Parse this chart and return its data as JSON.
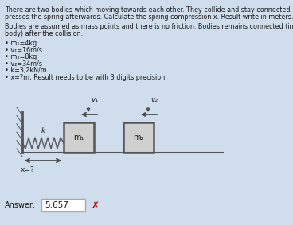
{
  "background_color": "#cfdded",
  "title_lines": [
    "There are two bodies which moving towards each other. They collide and stay connected. The",
    "presses the spring afterwards. Calculate the spring compression x. Result write in meters."
  ],
  "body_lines": [
    "Bodies are assumed as mass points and there is no friction. Bodies remains connected (into one",
    "body) after the collision."
  ],
  "bullets": [
    "m₁=4kg",
    "v₁=16m/s",
    "m₂=8kg",
    "v₂=34m/s",
    "k=3,2kN/m",
    "x=?m; Result needs to be with 3 digits precision"
  ],
  "answer_label": "Answer:",
  "answer_value": "5.657",
  "spring_label": "k",
  "box1_label": "m₁",
  "box2_label": "m₂",
  "v1_label": "v₁",
  "v2_label": "v₂",
  "x_label": "x=?",
  "text_color": "#1a1a1a",
  "box_face_color": "#d0d0d0",
  "box_edge_color": "#555555",
  "answer_box_color": "#ffffff",
  "answer_box_edge": "#aaaaaa",
  "cross_color": "#cc0000",
  "wall_color": "#555555",
  "spring_color": "#555555",
  "arrow_color": "#444444",
  "floor_color": "#555555",
  "fontsize_text": 5.8,
  "fontsize_diagram": 6.5,
  "fontsize_answer": 7.0
}
